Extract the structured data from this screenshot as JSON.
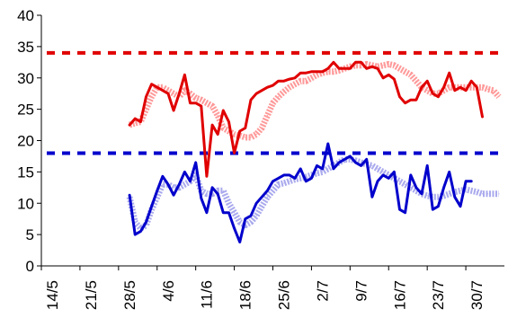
{
  "chart_data": {
    "type": "line",
    "title": "",
    "xlabel": "",
    "ylabel": "",
    "ylim": [
      0,
      40
    ],
    "yticks": [
      "0",
      "5",
      "10",
      "15",
      "20",
      "25",
      "30",
      "35",
      "40"
    ],
    "xtick_labels": [
      "14/5",
      "21/5",
      "28/5",
      "4/6",
      "11/6",
      "18/6",
      "25/6",
      "2/7",
      "9/7",
      "16/7",
      "23/7",
      "30/7"
    ],
    "xlim_days": [
      0,
      84
    ],
    "grid": false,
    "legend": "none",
    "reference_lines": [
      {
        "y": 34,
        "color": "#e00000",
        "style": "dashed"
      },
      {
        "y": 18,
        "color": "#0000cc",
        "style": "dashed"
      }
    ],
    "series": [
      {
        "color": "#ff9999",
        "style": "hatched-thick",
        "x": [
          16,
          17,
          18,
          19,
          20,
          21,
          22,
          23,
          24,
          25,
          26,
          27,
          28,
          29,
          30,
          31,
          32,
          33,
          34,
          35,
          36,
          37,
          38,
          39,
          40,
          41,
          42,
          43,
          44,
          45,
          46,
          47,
          48,
          49,
          50,
          51,
          52,
          53,
          54,
          55,
          56,
          57,
          58,
          59,
          60,
          61,
          62,
          63,
          64,
          65,
          66,
          67,
          68,
          69,
          70,
          71,
          72,
          73,
          74,
          75,
          76,
          77,
          78,
          79,
          80,
          81,
          82,
          83
        ],
        "values": [
          22.5,
          22.8,
          23,
          25,
          27,
          28.5,
          28.5,
          28,
          27.5,
          27,
          28,
          27.5,
          26.8,
          26.5,
          26,
          25.5,
          24,
          22,
          21.5,
          21,
          20.8,
          20.5,
          20.5,
          21,
          22,
          24,
          26,
          27,
          27.8,
          28.5,
          29,
          29.5,
          29.5,
          30,
          30.5,
          30.8,
          31,
          31,
          31.2,
          31.5,
          31.8,
          32,
          32,
          32.2,
          32,
          31.8,
          32,
          32.2,
          32,
          31.5,
          31,
          30.5,
          29.5,
          28.5,
          28,
          27.5,
          27.5,
          28,
          28.5,
          28.5,
          28.5,
          28.5,
          28.5,
          28.5,
          28.5,
          28.2,
          28,
          27
        ]
      },
      {
        "color": "#e00000",
        "style": "solid",
        "x": [
          16,
          17,
          18,
          19,
          20,
          21,
          22,
          23,
          24,
          25,
          26,
          27,
          28,
          29,
          30,
          31,
          32,
          33,
          34,
          35,
          36,
          37,
          38,
          39,
          40,
          41,
          42,
          43,
          44,
          45,
          46,
          47,
          48,
          49,
          50,
          51,
          52,
          53,
          54,
          55,
          56,
          57,
          58,
          59,
          60,
          61,
          62,
          63,
          64,
          65,
          66,
          67,
          68,
          69,
          70,
          71,
          72,
          73,
          74,
          75,
          76,
          77,
          78,
          79,
          80,
          81,
          82,
          83
        ],
        "values": [
          22.5,
          23.5,
          23,
          27,
          29,
          28.5,
          28,
          27.5,
          24.8,
          27.5,
          30.5,
          26,
          26,
          25.5,
          14.3,
          22.5,
          21,
          24.8,
          23,
          18,
          21.5,
          22,
          26.5,
          27.5,
          28,
          28.5,
          28.8,
          29.5,
          29.5,
          29.8,
          30,
          30.8,
          30.8,
          31,
          31,
          31,
          31.5,
          32.5,
          31.5,
          31.5,
          31.5,
          32.5,
          32.5,
          31.5,
          31.8,
          31.5,
          30,
          30.5,
          29.8,
          27,
          26,
          26.5,
          26.5,
          28.5,
          29.5,
          27.5,
          27,
          28.5,
          30.8,
          28,
          28.5,
          28,
          29.5,
          28.5,
          23.8,
          null,
          null,
          null
        ]
      },
      {
        "color": "#aaaaee",
        "style": "hatched-thick",
        "x": [
          16,
          17,
          18,
          19,
          20,
          21,
          22,
          23,
          24,
          25,
          26,
          27,
          28,
          29,
          30,
          31,
          32,
          33,
          34,
          35,
          36,
          37,
          38,
          39,
          40,
          41,
          42,
          43,
          44,
          45,
          46,
          47,
          48,
          49,
          50,
          51,
          52,
          53,
          54,
          55,
          56,
          57,
          58,
          59,
          60,
          61,
          62,
          63,
          64,
          65,
          66,
          67,
          68,
          69,
          70,
          71,
          72,
          73,
          74,
          75,
          76,
          77,
          78,
          79,
          80,
          81,
          82,
          83
        ],
        "values": [
          11,
          7,
          6,
          6.5,
          9,
          11,
          13,
          13,
          12.5,
          12.5,
          13,
          13.5,
          14.5,
          12,
          11.5,
          11.5,
          12,
          12,
          10,
          8.5,
          7,
          6.5,
          7,
          8,
          9.5,
          11,
          12,
          13,
          13.2,
          13.5,
          13.8,
          14,
          14.2,
          14.5,
          14.8,
          15,
          15.5,
          16,
          16.5,
          17,
          17,
          16.8,
          16.5,
          16.2,
          16,
          15.5,
          15,
          14.5,
          14,
          13.5,
          13,
          12.5,
          12,
          11.5,
          11.2,
          11,
          11,
          11.2,
          11.5,
          11.8,
          12,
          12.2,
          12,
          11.8,
          11.5,
          11.5,
          11.5,
          11.5
        ]
      },
      {
        "color": "#0000cc",
        "style": "solid",
        "x": [
          16,
          17,
          18,
          19,
          20,
          21,
          22,
          23,
          24,
          25,
          26,
          27,
          28,
          29,
          30,
          31,
          32,
          33,
          34,
          35,
          36,
          37,
          38,
          39,
          40,
          41,
          42,
          43,
          44,
          45,
          46,
          47,
          48,
          49,
          50,
          51,
          52,
          53,
          54,
          55,
          56,
          57,
          58,
          59,
          60,
          61,
          62,
          63,
          64,
          65,
          66,
          67,
          68,
          69,
          70,
          71,
          72,
          73,
          74,
          75,
          76,
          77,
          78,
          79,
          80,
          81,
          82,
          83
        ],
        "values": [
          11.3,
          5,
          5.5,
          7,
          9.5,
          12,
          14.3,
          13,
          11.3,
          13,
          15,
          13.5,
          16.5,
          10.8,
          8.5,
          12.5,
          11.5,
          8.5,
          8.5,
          6,
          3.8,
          7.5,
          8,
          10,
          11,
          12,
          13.5,
          14,
          14.5,
          14.5,
          14,
          15.5,
          13.5,
          14,
          16,
          15.5,
          19.5,
          15.5,
          16.5,
          17,
          17.5,
          16.5,
          16,
          17,
          11,
          13.5,
          14.5,
          14,
          15,
          9,
          8.5,
          14.5,
          12.5,
          11.5,
          16,
          9,
          9.5,
          12.5,
          15,
          11,
          9.5,
          13.5,
          13.5,
          null,
          null,
          null,
          null,
          null
        ]
      }
    ]
  }
}
